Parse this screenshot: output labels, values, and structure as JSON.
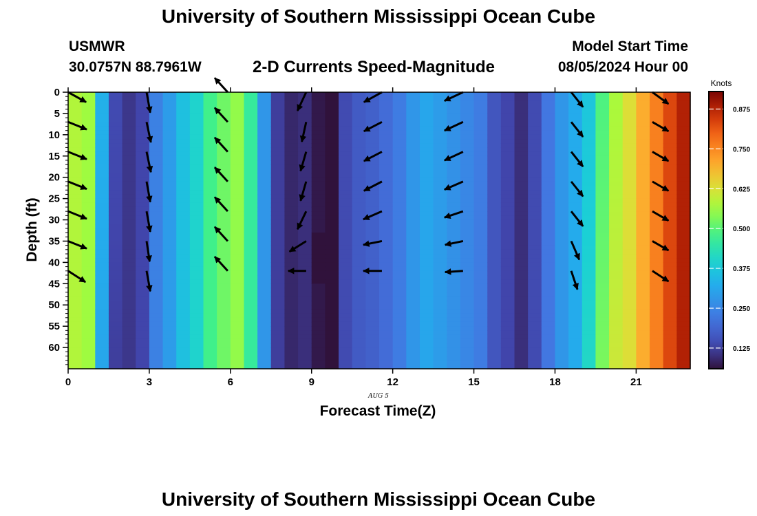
{
  "header": {
    "title": "University of Southern Mississippi Ocean Cube",
    "station": "USMWR",
    "coords": "30.0757N  88.7961W",
    "product": "2-D Currents Speed-Magnitude",
    "model_start_label": "Model Start Time",
    "model_start_value": "08/05/2024 Hour 00"
  },
  "footer": {
    "title": "University of Southern Mississippi Ocean Cube"
  },
  "chart_data": {
    "type": "heatmap",
    "title": "2-D Currents Speed-Magnitude",
    "xlabel": "Forecast Time(Z)",
    "ylabel": "Depth (ft)",
    "date_label": "AUG 5",
    "xlim": [
      0,
      23
    ],
    "ylim": [
      0,
      65
    ],
    "x_ticks": [
      0,
      3,
      6,
      9,
      12,
      15,
      18,
      21
    ],
    "y_ticks": [
      0,
      5,
      10,
      15,
      20,
      25,
      30,
      35,
      40,
      45,
      50,
      55,
      60
    ],
    "colorbar": {
      "unit": "Knots",
      "min": 0.06,
      "max": 0.93,
      "ticks": [
        "0.875",
        "0.750",
        "0.625",
        "0.500",
        "0.375",
        "0.250",
        "0.125"
      ],
      "tick_values": [
        0.875,
        0.75,
        0.625,
        0.5,
        0.375,
        0.25,
        0.125
      ]
    },
    "hours": [
      0,
      0.5,
      1,
      1.5,
      2,
      2.5,
      3,
      3.5,
      4,
      4.5,
      5,
      5.5,
      6,
      6.5,
      7,
      7.5,
      8,
      8.5,
      9,
      9.5,
      10,
      10.5,
      11,
      11.5,
      12,
      12.5,
      13,
      13.5,
      14,
      14.5,
      15,
      15.5,
      16,
      16.5,
      17,
      17.5,
      18,
      18.5,
      19,
      19.5,
      20,
      20.5,
      21,
      21.5,
      22,
      22.5
    ],
    "speed_profile_knots": [
      0.58,
      0.56,
      0.33,
      0.14,
      0.11,
      0.13,
      0.24,
      0.29,
      0.36,
      0.4,
      0.48,
      0.52,
      0.55,
      0.46,
      0.28,
      0.12,
      0.09,
      0.1,
      0.07,
      0.05,
      0.14,
      0.17,
      0.18,
      0.2,
      0.23,
      0.28,
      0.31,
      0.29,
      0.27,
      0.25,
      0.23,
      0.16,
      0.13,
      0.1,
      0.14,
      0.22,
      0.28,
      0.32,
      0.37,
      0.49,
      0.57,
      0.63,
      0.7,
      0.76,
      0.83,
      0.88
    ],
    "anomaly": {
      "hour": 9.5,
      "depth": 39,
      "speed": 0.93
    },
    "vector_depths": [
      0,
      7,
      14,
      21,
      28,
      35,
      42
    ],
    "vector_columns": [
      {
        "hour": 0,
        "vectors": [
          [
            0.29,
            -0.16
          ],
          [
            0.3,
            -0.12
          ],
          [
            0.3,
            -0.12
          ],
          [
            0.3,
            -0.12
          ],
          [
            0.3,
            -0.12
          ],
          [
            0.3,
            -0.12
          ],
          [
            0.28,
            -0.18
          ]
        ]
      },
      {
        "hour": 2.9,
        "vectors": [
          [
            0.06,
            -0.33
          ],
          [
            0.07,
            -0.33
          ],
          [
            0.07,
            -0.33
          ],
          [
            0.06,
            -0.33
          ],
          [
            0.06,
            -0.33
          ],
          [
            0.05,
            -0.33
          ],
          [
            0.06,
            -0.33
          ]
        ]
      },
      {
        "hour": 5.9,
        "vectors": [
          [
            -0.21,
            0.23
          ],
          [
            -0.21,
            0.23
          ],
          [
            -0.21,
            0.23
          ],
          [
            -0.21,
            0.23
          ],
          [
            -0.21,
            0.23
          ],
          [
            -0.21,
            0.23
          ],
          [
            -0.21,
            0.23
          ]
        ]
      },
      {
        "hour": 8.8,
        "vectors": [
          [
            -0.14,
            -0.3
          ],
          [
            -0.07,
            -0.32
          ],
          [
            -0.09,
            -0.31
          ],
          [
            -0.09,
            -0.31
          ],
          [
            -0.14,
            -0.29
          ],
          [
            -0.27,
            -0.17
          ],
          [
            -0.29,
            0.0
          ]
        ]
      },
      {
        "hour": 11.6,
        "vectors": [
          [
            -0.29,
            -0.16
          ],
          [
            -0.29,
            -0.15
          ],
          [
            -0.29,
            -0.15
          ],
          [
            -0.29,
            -0.15
          ],
          [
            -0.3,
            -0.13
          ],
          [
            -0.3,
            -0.06
          ],
          [
            -0.3,
            0.0
          ]
        ]
      },
      {
        "hour": 14.6,
        "vectors": [
          [
            -0.3,
            -0.14
          ],
          [
            -0.3,
            -0.14
          ],
          [
            -0.3,
            -0.14
          ],
          [
            -0.3,
            -0.13
          ],
          [
            -0.3,
            -0.1
          ],
          [
            -0.29,
            -0.06
          ],
          [
            -0.29,
            -0.02
          ]
        ]
      },
      {
        "hour": 18.6,
        "vectors": [
          [
            0.19,
            -0.24
          ],
          [
            0.19,
            -0.24
          ],
          [
            0.19,
            -0.24
          ],
          [
            0.19,
            -0.24
          ],
          [
            0.19,
            -0.24
          ],
          [
            0.13,
            -0.3
          ],
          [
            0.1,
            -0.3
          ]
        ]
      },
      {
        "hour": 21.6,
        "vectors": [
          [
            0.26,
            -0.19
          ],
          [
            0.26,
            -0.15
          ],
          [
            0.26,
            -0.15
          ],
          [
            0.26,
            -0.15
          ],
          [
            0.26,
            -0.15
          ],
          [
            0.26,
            -0.15
          ],
          [
            0.26,
            -0.17
          ]
        ]
      }
    ]
  }
}
